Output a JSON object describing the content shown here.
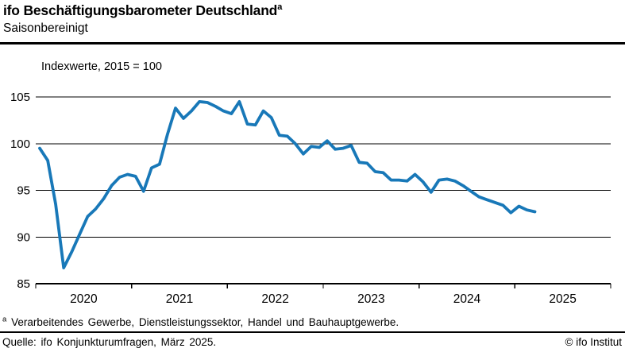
{
  "header": {
    "title": "ifo Beschäftigungsbarometer Deutschland",
    "title_superscript": "a",
    "subtitle": "Saisonbereinigt"
  },
  "chart_data": {
    "type": "line",
    "title": "ifo Beschäftigungsbarometer Deutschland (saisonbereinigt)",
    "unit_label": "Indexwerte, 2015 = 100",
    "frequency": "monthly",
    "x_tick_years": [
      "2020",
      "2021",
      "2022",
      "2023",
      "2024",
      "2025"
    ],
    "y_ticks": [
      85,
      90,
      95,
      100,
      105
    ],
    "ylim": [
      85,
      105
    ],
    "grid": "horizontal",
    "legend": "none",
    "line_color": "#1878b8",
    "axis_color": "#000000",
    "months": [
      "2020-01",
      "2020-02",
      "2020-03",
      "2020-04",
      "2020-05",
      "2020-06",
      "2020-07",
      "2020-08",
      "2020-09",
      "2020-10",
      "2020-11",
      "2020-12",
      "2021-01",
      "2021-02",
      "2021-03",
      "2021-04",
      "2021-05",
      "2021-06",
      "2021-07",
      "2021-08",
      "2021-09",
      "2021-10",
      "2021-11",
      "2021-12",
      "2022-01",
      "2022-02",
      "2022-03",
      "2022-04",
      "2022-05",
      "2022-06",
      "2022-07",
      "2022-08",
      "2022-09",
      "2022-10",
      "2022-11",
      "2022-12",
      "2023-01",
      "2023-02",
      "2023-03",
      "2023-04",
      "2023-05",
      "2023-06",
      "2023-07",
      "2023-08",
      "2023-09",
      "2023-10",
      "2023-11",
      "2023-12",
      "2024-01",
      "2024-02",
      "2024-03",
      "2024-04",
      "2024-05",
      "2024-06",
      "2024-07",
      "2024-08",
      "2024-09",
      "2024-10",
      "2024-11",
      "2024-12",
      "2025-01",
      "2025-02",
      "2025-03"
    ],
    "values": [
      99.5,
      98.2,
      93.5,
      86.7,
      88.4,
      90.3,
      92.2,
      93.0,
      94.1,
      95.5,
      96.4,
      96.7,
      96.5,
      94.9,
      97.4,
      97.8,
      101.0,
      103.8,
      102.7,
      103.5,
      104.5,
      104.4,
      104.0,
      103.5,
      103.2,
      104.5,
      102.1,
      102.0,
      103.5,
      102.8,
      100.9,
      100.8,
      100.0,
      98.9,
      99.7,
      99.6,
      100.3,
      99.4,
      99.5,
      99.8,
      98.0,
      97.9,
      97.0,
      96.9,
      96.1,
      96.1,
      96.0,
      96.7,
      95.9,
      94.8,
      96.1,
      96.2,
      96.0,
      95.5,
      94.9,
      94.3,
      94.0,
      93.7,
      93.4,
      92.6,
      93.3,
      92.9,
      92.7
    ]
  },
  "footnote": {
    "marker": "a",
    "text": "Verarbeitendes Gewerbe, Dienstleistungssektor, Handel und Bauhauptgewerbe."
  },
  "source": {
    "text": "Quelle: ifo Konjunkturumfragen, März 2025."
  },
  "copyright": {
    "text": "© ifo Institut"
  }
}
